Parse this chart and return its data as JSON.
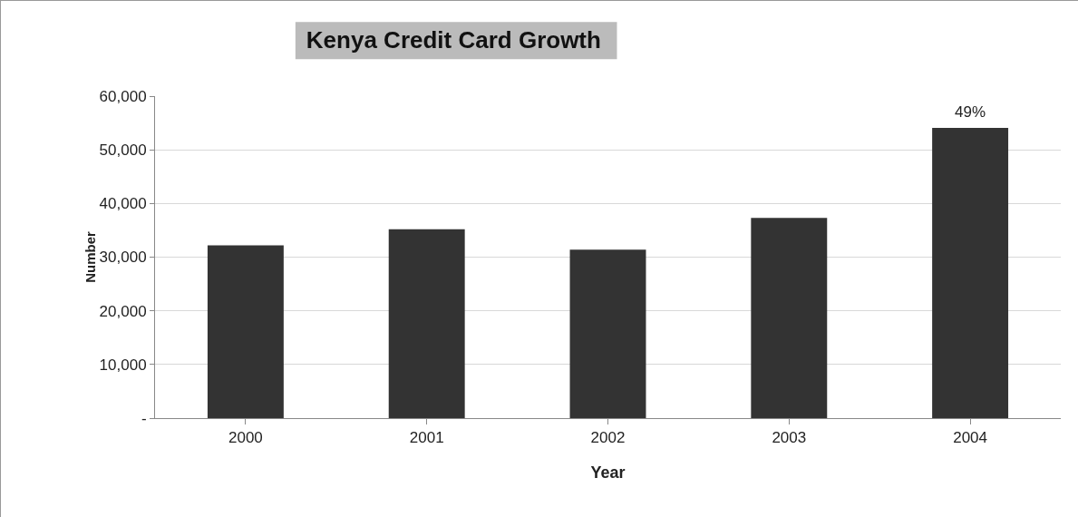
{
  "chart_data": {
    "type": "bar",
    "title": "Kenya Credit Card Growth",
    "xlabel": "Year",
    "ylabel": "Number",
    "categories": [
      "2000",
      "2001",
      "2002",
      "2003",
      "2004"
    ],
    "values": [
      32200,
      35200,
      31400,
      37300,
      54100
    ],
    "color": "#333333",
    "ylim": [
      0,
      60000
    ],
    "yticks": [
      {
        "value": 0,
        "label": "-"
      },
      {
        "value": 10000,
        "label": "10,000"
      },
      {
        "value": 20000,
        "label": "20,000"
      },
      {
        "value": 30000,
        "label": "30,000"
      },
      {
        "value": 40000,
        "label": "40,000"
      },
      {
        "value": 50000,
        "label": "50,000"
      },
      {
        "value": 60000,
        "label": "60,000"
      }
    ],
    "annotations": [
      {
        "text": "49%",
        "x": "2004",
        "y": 54100
      }
    ],
    "grid": "y"
  }
}
